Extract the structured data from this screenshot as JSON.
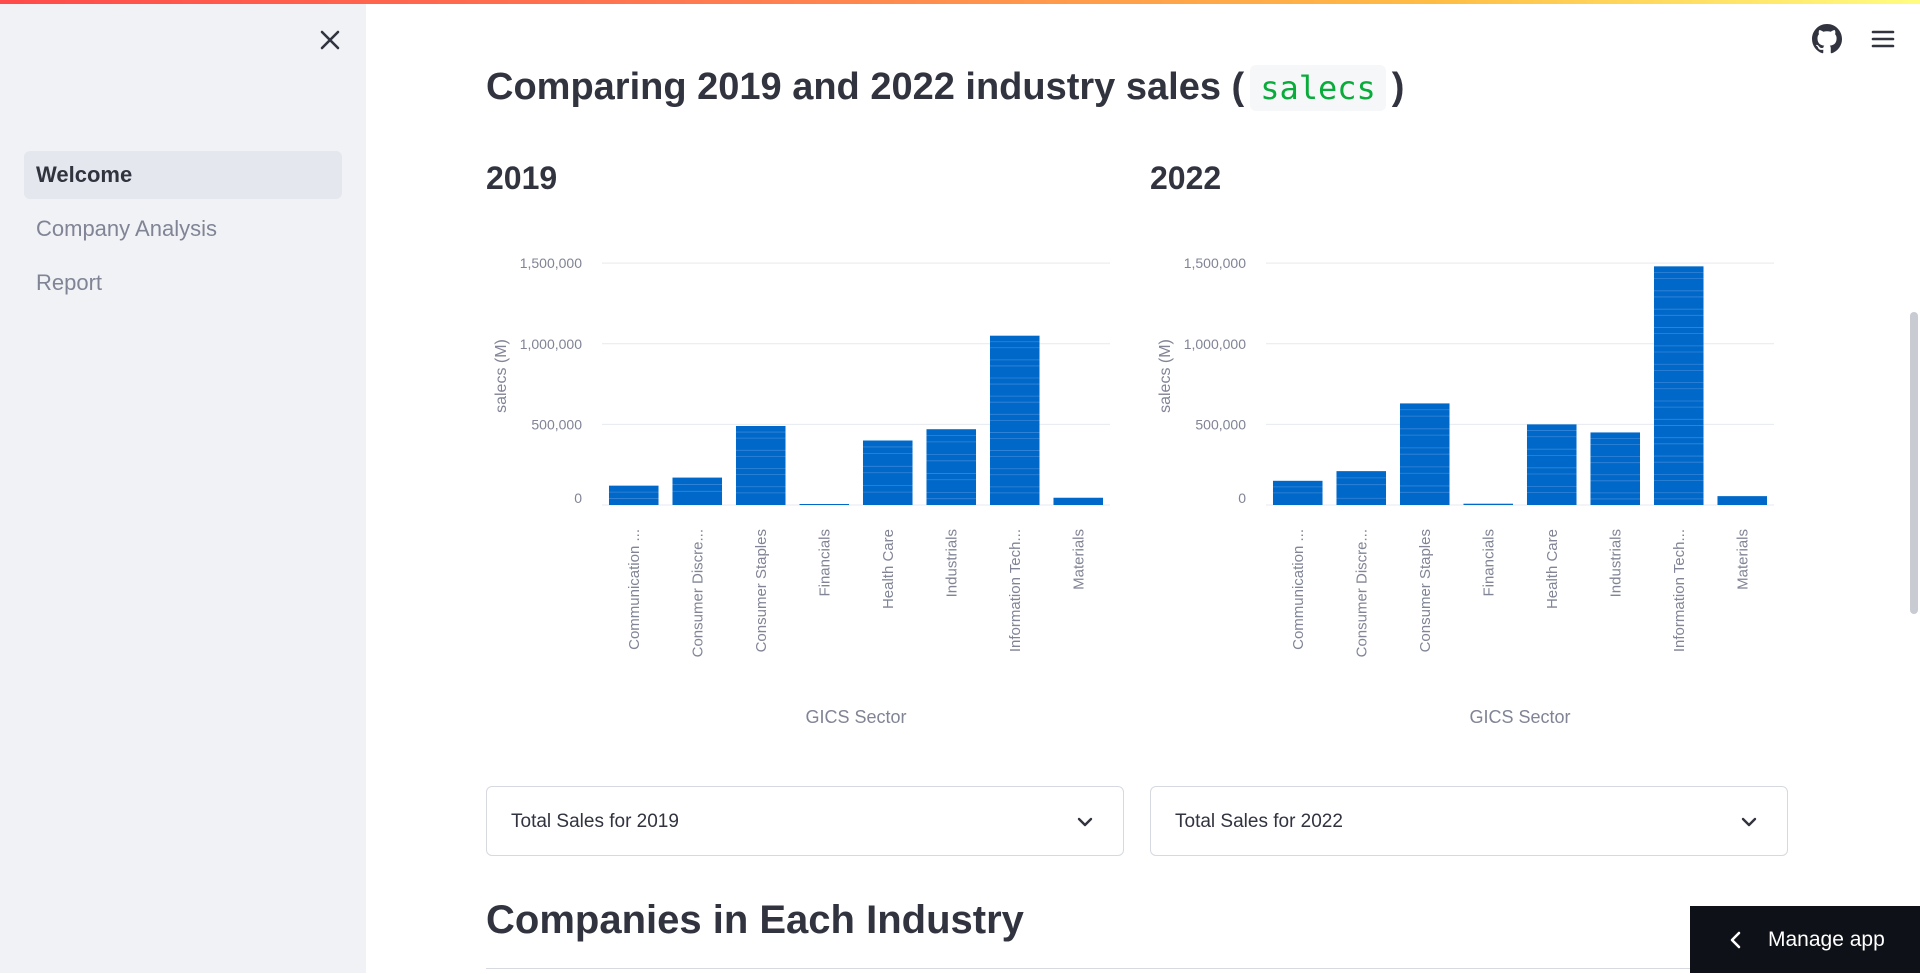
{
  "sidebar": {
    "items": [
      {
        "label": "Welcome",
        "active": true
      },
      {
        "label": "Company Analysis",
        "active": false
      },
      {
        "label": "Report",
        "active": false
      }
    ],
    "close_icon": "close-icon"
  },
  "header": {
    "github_icon": "github-icon",
    "menu_icon": "hamburger-menu-icon"
  },
  "main": {
    "title_prefix": "Comparing 2019 and 2022 industry sales (",
    "title_code": "salecs",
    "title_suffix": ")",
    "left_year": "2019",
    "right_year": "2022",
    "expander_2019": "Total Sales for 2019",
    "expander_2022": "Total Sales for 2022",
    "section_title": "Companies in Each Industry"
  },
  "manage_app": {
    "label": "Manage app"
  },
  "colors": {
    "bar": "#0068c9",
    "accent_code": "#09ab3b",
    "sidebar_bg": "#f0f2f6"
  },
  "chart_data": [
    {
      "type": "bar",
      "title": "2019",
      "xlabel": "GICS Sector",
      "ylabel": "salecs (M)",
      "ylim": [
        0,
        1600000
      ],
      "yticks": [
        0,
        500000,
        1000000,
        1500000
      ],
      "ytick_labels": [
        "0",
        "500,000",
        "1,000,000",
        "1,500,000"
      ],
      "categories": [
        "Communication ...",
        "Consumer Discre...",
        "Consumer Staples",
        "Financials",
        "Health Care",
        "Industrials",
        "Information Tech...",
        "Materials"
      ],
      "values": [
        120000,
        170000,
        490000,
        3000,
        400000,
        470000,
        1050000,
        45000
      ]
    },
    {
      "type": "bar",
      "title": "2022",
      "xlabel": "GICS Sector",
      "ylabel": "salecs (M)",
      "ylim": [
        0,
        1600000
      ],
      "yticks": [
        0,
        500000,
        1000000,
        1500000
      ],
      "ytick_labels": [
        "0",
        "500,000",
        "1,000,000",
        "1,500,000"
      ],
      "categories": [
        "Communication ...",
        "Consumer Discre...",
        "Consumer Staples",
        "Financials",
        "Health Care",
        "Industrials",
        "Information Tech...",
        "Materials"
      ],
      "values": [
        150000,
        210000,
        630000,
        8000,
        500000,
        450000,
        1480000,
        55000
      ]
    }
  ]
}
